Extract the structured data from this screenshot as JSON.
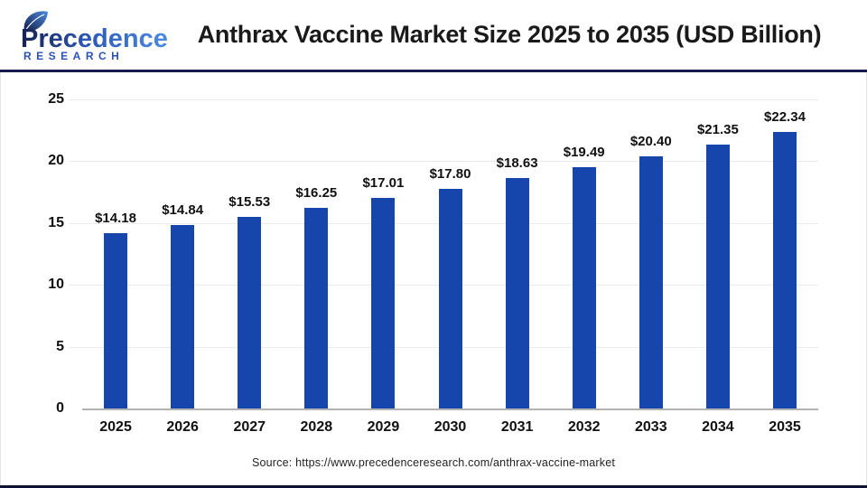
{
  "header": {
    "logo": {
      "name": "Precedence",
      "subname": "RESEARCH",
      "brand_navy": "#16224f",
      "brand_blue": "#4e8bdd"
    },
    "title": "Anthrax Vaccine Market Size 2025 to 2035 (USD Billion)"
  },
  "chart_data": {
    "type": "bar",
    "title": "Anthrax Vaccine Market Size 2025 to 2035 (USD Billion)",
    "unit": "USD Billion",
    "categories": [
      "2025",
      "2026",
      "2027",
      "2028",
      "2029",
      "2030",
      "2031",
      "2032",
      "2033",
      "2034",
      "2035"
    ],
    "values": [
      14.18,
      14.84,
      15.53,
      16.25,
      17.01,
      17.8,
      18.63,
      19.49,
      20.4,
      21.35,
      22.34
    ],
    "value_labels": [
      "$14.18",
      "$14.84",
      "$15.53",
      "$16.25",
      "$17.01",
      "$17.80",
      "$18.63",
      "$19.49",
      "$20.40",
      "$21.35",
      "$22.34"
    ],
    "xlabel": "",
    "ylabel": "",
    "ylim": [
      0,
      25
    ],
    "yticks": [
      0,
      5,
      10,
      15,
      20,
      25
    ],
    "grid": true,
    "legend": "none",
    "bar_color": "#1645ac",
    "gridline_color": "#ebebeb",
    "baseline_color": "#b3b3b3",
    "label_color": "#111111"
  },
  "footer": {
    "source": "Source: https://www.precedenceresearch.com/anthrax-vaccine-market"
  }
}
